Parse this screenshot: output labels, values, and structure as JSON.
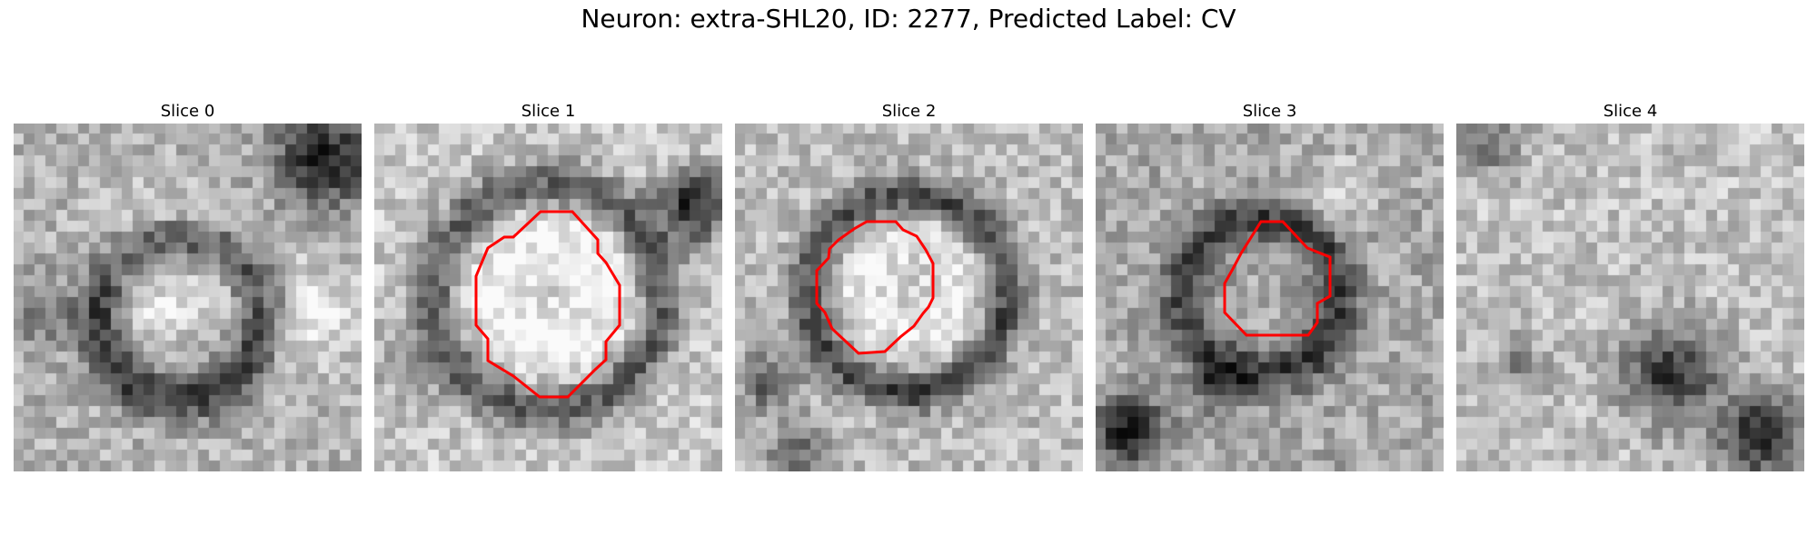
{
  "figure": {
    "title": "Neuron: extra-SHL20, ID: 2277, Predicted Label: CV"
  },
  "panels": [
    {
      "title": "Slice 0",
      "has_contour": false
    },
    {
      "title": "Slice 1",
      "has_contour": true
    },
    {
      "title": "Slice 2",
      "has_contour": true
    },
    {
      "title": "Slice 3",
      "has_contour": true
    },
    {
      "title": "Slice 4",
      "has_contour": false
    }
  ],
  "colors": {
    "contour": "#ff0000",
    "image_colormap": "grayscale"
  }
}
